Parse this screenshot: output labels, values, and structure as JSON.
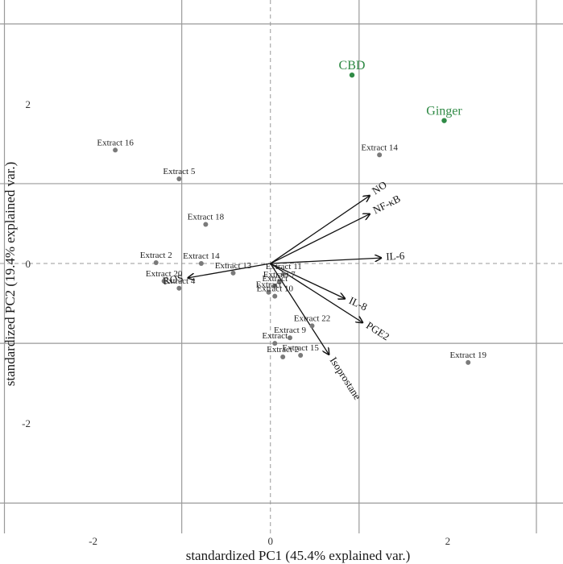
{
  "chart_data": {
    "type": "scatter",
    "xlabel": "standardized PC1 (45.4% explained var.)",
    "ylabel": "standardized PC2 (19.4% explained var.)",
    "xlim": [
      -3.05,
      3.3
    ],
    "ylim": [
      -3.38,
      3.3
    ],
    "x_ticks": [
      -2,
      0,
      2
    ],
    "y_ticks": [
      -2,
      0,
      2
    ],
    "grid": true,
    "zero_lines": "dashed",
    "points": [
      {
        "label": "Extract 16",
        "x": -1.75,
        "y": 1.42
      },
      {
        "label": "Extract 5",
        "x": -1.03,
        "y": 1.06
      },
      {
        "label": "Extract 14",
        "x": 1.23,
        "y": 1.36
      },
      {
        "label": "Extract 18",
        "x": -0.73,
        "y": 0.49
      },
      {
        "label": "Extract 2",
        "x": -1.29,
        "y": 0.01
      },
      {
        "label": "Extract 14",
        "x": -0.78,
        "y": 0.0
      },
      {
        "label": "Extract 13",
        "x": -0.42,
        "y": -0.12
      },
      {
        "label": "Extract 20",
        "x": -1.2,
        "y": -0.22
      },
      {
        "label": "Extract 4",
        "x": -1.03,
        "y": -0.31
      },
      {
        "label": "Extract 11",
        "x": 0.15,
        "y": -0.13
      },
      {
        "label": "Extract 7",
        "x": 0.1,
        "y": -0.23
      },
      {
        "label": "Extract",
        "x": 0.05,
        "y": -0.28
      },
      {
        "label": "Extract",
        "x": -0.02,
        "y": -0.36
      },
      {
        "label": "Extract 10",
        "x": 0.05,
        "y": -0.41
      },
      {
        "label": "Extract 22",
        "x": 0.47,
        "y": -0.78
      },
      {
        "label": "Extract 9",
        "x": 0.22,
        "y": -0.93
      },
      {
        "label": "Extract",
        "x": 0.05,
        "y": -1.0
      },
      {
        "label": "Extract 2",
        "x": 0.14,
        "y": -1.17
      },
      {
        "label": "Extract 15",
        "x": 0.34,
        "y": -1.15
      },
      {
        "label": "Extract 19",
        "x": 2.23,
        "y": -1.24
      }
    ],
    "highlighted_points": [
      {
        "label": "CBD",
        "x": 0.92,
        "y": 2.36
      },
      {
        "label": "Ginger",
        "x": 1.96,
        "y": 1.79
      }
    ],
    "vectors": [
      {
        "label": "NO",
        "x": 1.12,
        "y": 0.85
      },
      {
        "label": "NF-κB",
        "x": 1.12,
        "y": 0.62
      },
      {
        "label": "IL-6",
        "x": 1.25,
        "y": 0.07
      },
      {
        "label": "ROS",
        "x": -0.93,
        "y": -0.18
      },
      {
        "label": "IL-8",
        "x": 0.84,
        "y": -0.44
      },
      {
        "label": "PGE2",
        "x": 1.04,
        "y": -0.74
      },
      {
        "label": "Isoprostane",
        "x": 0.66,
        "y": -1.14
      }
    ],
    "colors": {
      "grid": "#9a9a9a",
      "points": "#7a7a7a",
      "highlight": "#2f8a45",
      "vectors": "#111111"
    }
  }
}
